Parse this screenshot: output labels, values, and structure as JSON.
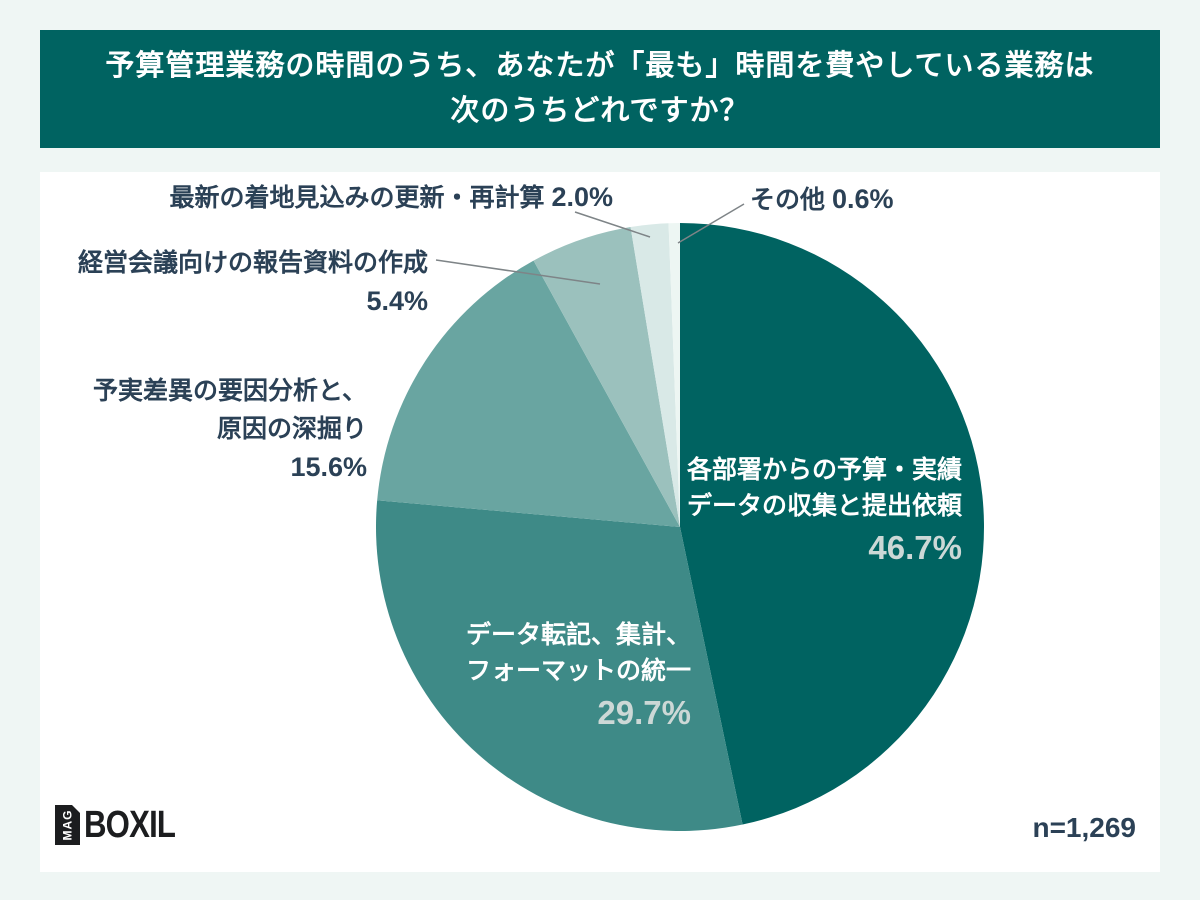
{
  "banner": {
    "title_line1": "予算管理業務の時間のうち、あなたが「最も」時間を費やしている業務は",
    "title_line2": "次のうちどれですか？",
    "bg_color": "#006361",
    "text_color": "#ffffff"
  },
  "logo": {
    "mark": "MAG",
    "name": "BOXIL"
  },
  "chart_data": {
    "type": "pie",
    "title": "予算管理業務の時間のうち、あなたが「最も」時間を費やしている業務は次のうちどれですか？",
    "n_label": "n=1,269",
    "unit": "%",
    "order": "clockwise-from-12-oclock",
    "legend_position": "callouts-and-inside-labels",
    "accent_color": "#006361",
    "label_text_color": "#2b4156",
    "inside_pct_color": "#ccd8d6",
    "leader_line_color": "#7e8487",
    "slices": [
      {
        "label": "各部署からの予算・実績データの収集と提出依頼",
        "label_lines": [
          "各部署からの予算・実績",
          "データの収集と提出依頼"
        ],
        "value": 46.7,
        "pct": "46.7%",
        "color": "#006361",
        "label_placement": "inside"
      },
      {
        "label": "データ転記、集計、フォーマットの統一",
        "label_lines": [
          "データ転記、集計、",
          "フォーマットの統一"
        ],
        "value": 29.7,
        "pct": "29.7%",
        "color": "#3e8a87",
        "label_placement": "inside"
      },
      {
        "label": "予実差異の要因分析と、原因の深掘り",
        "label_lines": [
          "予実差異の要因分析と、",
          "原因の深掘り"
        ],
        "value": 15.6,
        "pct": "15.6%",
        "color": "#69a5a1",
        "label_placement": "outside"
      },
      {
        "label": "経営会議向けの報告資料の作成",
        "label_lines": [
          "経営会議向けの報告資料の作成"
        ],
        "value": 5.4,
        "pct": "5.4%",
        "color": "#9bc1bd",
        "label_placement": "outside"
      },
      {
        "label": "最新の着地見込みの更新・再計算",
        "label_lines": [
          "最新の着地見込みの更新・再計算"
        ],
        "value": 2.0,
        "pct": "2.0%",
        "color": "#d9e9e7",
        "label_placement": "outside"
      },
      {
        "label": "その他",
        "label_lines": [
          "その他"
        ],
        "value": 0.6,
        "pct": "0.6%",
        "color": "#edf6f3",
        "label_placement": "outside"
      }
    ]
  }
}
